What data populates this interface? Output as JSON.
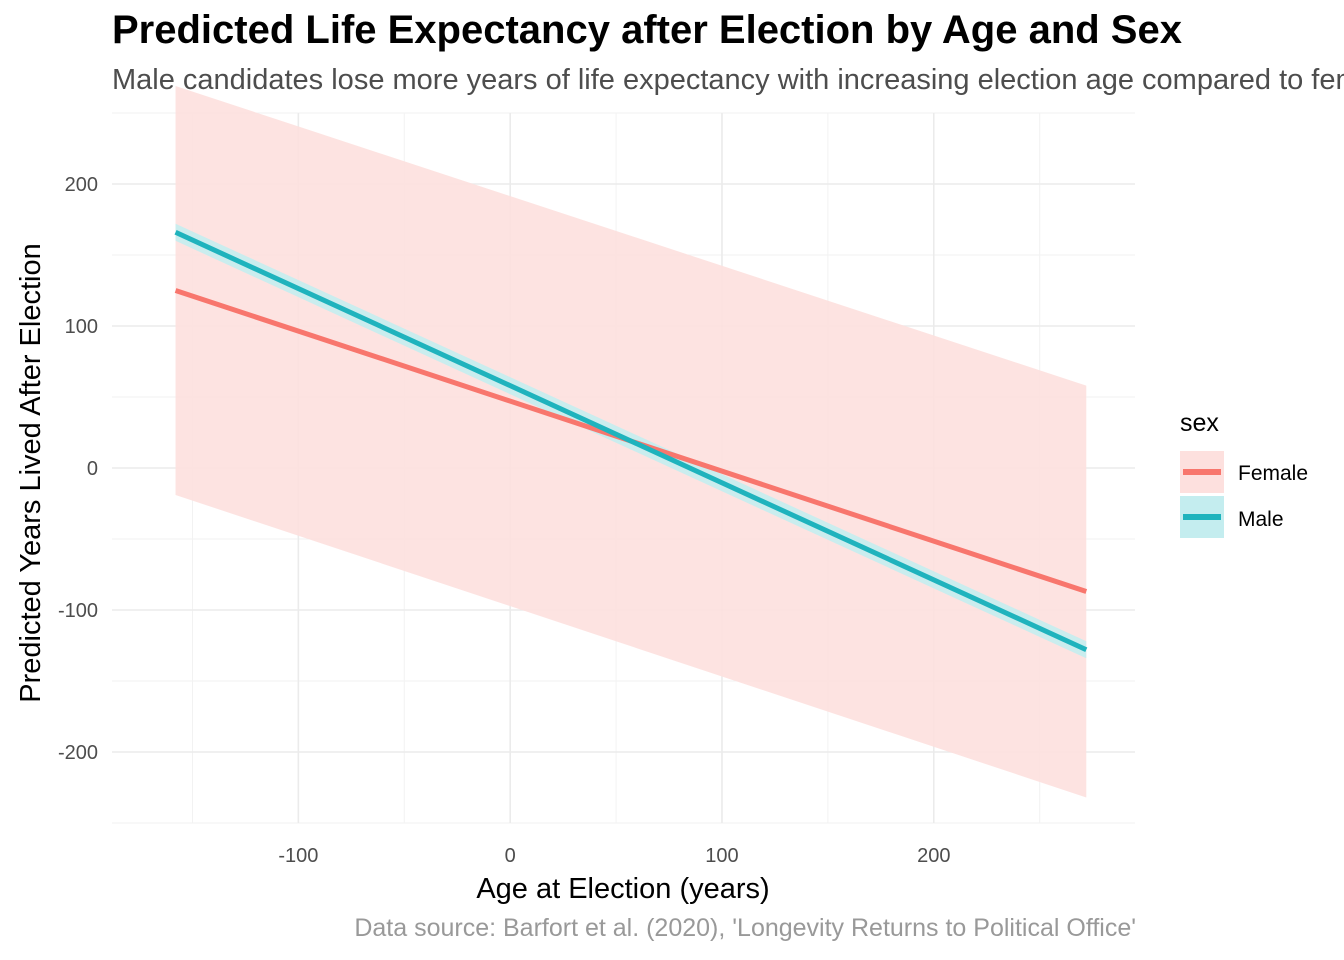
{
  "chart_data": {
    "type": "line",
    "title": "Predicted Life Expectancy after Election by Age and Sex",
    "subtitle": "Male candidates lose more years of life expectancy with increasing election age compared to female candidates",
    "caption": "Data source: Barfort et al. (2020), 'Longevity Returns to Political Office'",
    "xlabel": "Age at Election (years)",
    "ylabel": "Predicted Years Lived After Election",
    "xlim": [
      -188,
      295
    ],
    "ylim": [
      -250,
      250
    ],
    "x_ticks": [
      -100,
      0,
      100,
      200
    ],
    "x_tick_labels": [
      "-100",
      "0",
      "100",
      "200"
    ],
    "y_ticks": [
      -200,
      -100,
      0,
      100,
      200
    ],
    "y_tick_labels": [
      "-200",
      "-100",
      "0",
      "100",
      "200"
    ],
    "grid": true,
    "legend": {
      "title": "sex",
      "position": "right"
    },
    "series": [
      {
        "name": "Female",
        "color": "#F8766D",
        "ribbon_color": "#FDE0DE",
        "x": [
          -158,
          272
        ],
        "y": [
          125,
          -87
        ],
        "ci_lower": [
          -19,
          -232
        ],
        "ci_upper": [
          269,
          58
        ]
      },
      {
        "name": "Male",
        "color": "#1FB3BD",
        "ribbon_color": "#C4EDEF",
        "x": [
          -158,
          272
        ],
        "y": [
          166,
          -128
        ],
        "ci_lower": [
          160,
          -134
        ],
        "ci_upper": [
          172,
          -122
        ]
      }
    ]
  }
}
